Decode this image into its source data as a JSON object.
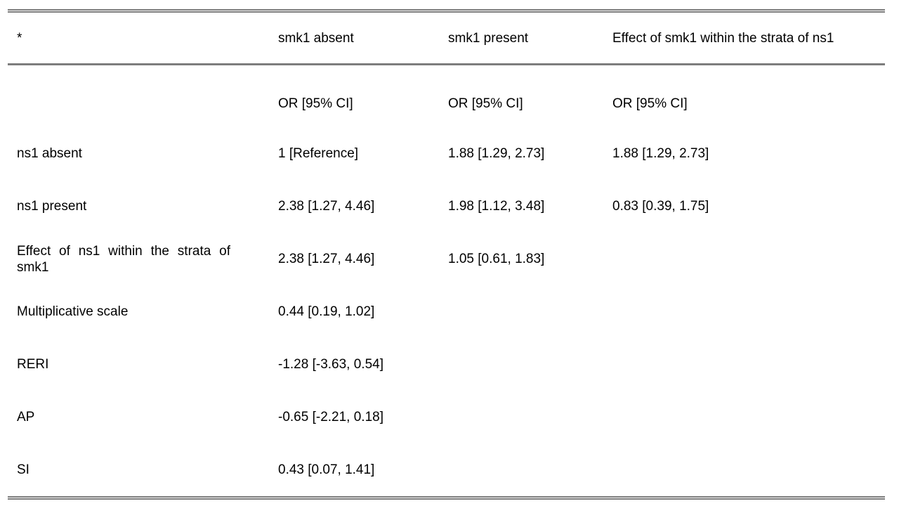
{
  "colors": {
    "rule": "#7d7d7d",
    "text": "#000000",
    "background": "#ffffff"
  },
  "table": {
    "header": [
      "*",
      "smk1 absent",
      "smk1 present",
      "Effect of smk1 within the strata of ns1"
    ],
    "subheader": [
      "",
      "OR [95% CI]",
      "OR [95% CI]",
      "OR [95% CI]"
    ],
    "rows": [
      {
        "label": "ns1 absent",
        "values": [
          "1 [Reference]",
          "1.88 [1.29, 2.73]",
          "1.88 [1.29, 2.73]"
        ]
      },
      {
        "label": "ns1 present",
        "values": [
          "2.38 [1.27, 4.46]",
          "1.98 [1.12, 3.48]",
          "0.83 [0.39, 1.75]"
        ]
      },
      {
        "label": "Effect of ns1 within the strata of smk1",
        "values": [
          "2.38 [1.27, 4.46]",
          "1.05 [0.61, 1.83]",
          ""
        ]
      },
      {
        "label": "Multiplicative scale",
        "values": [
          "0.44 [0.19, 1.02]",
          "",
          ""
        ]
      },
      {
        "label": "RERI",
        "values": [
          "-1.28 [-3.63, 0.54]",
          "",
          ""
        ]
      },
      {
        "label": "AP",
        "values": [
          "-0.65 [-2.21, 0.18]",
          "",
          ""
        ]
      },
      {
        "label": "SI",
        "values": [
          "0.43 [0.07, 1.41]",
          "",
          ""
        ]
      }
    ]
  }
}
